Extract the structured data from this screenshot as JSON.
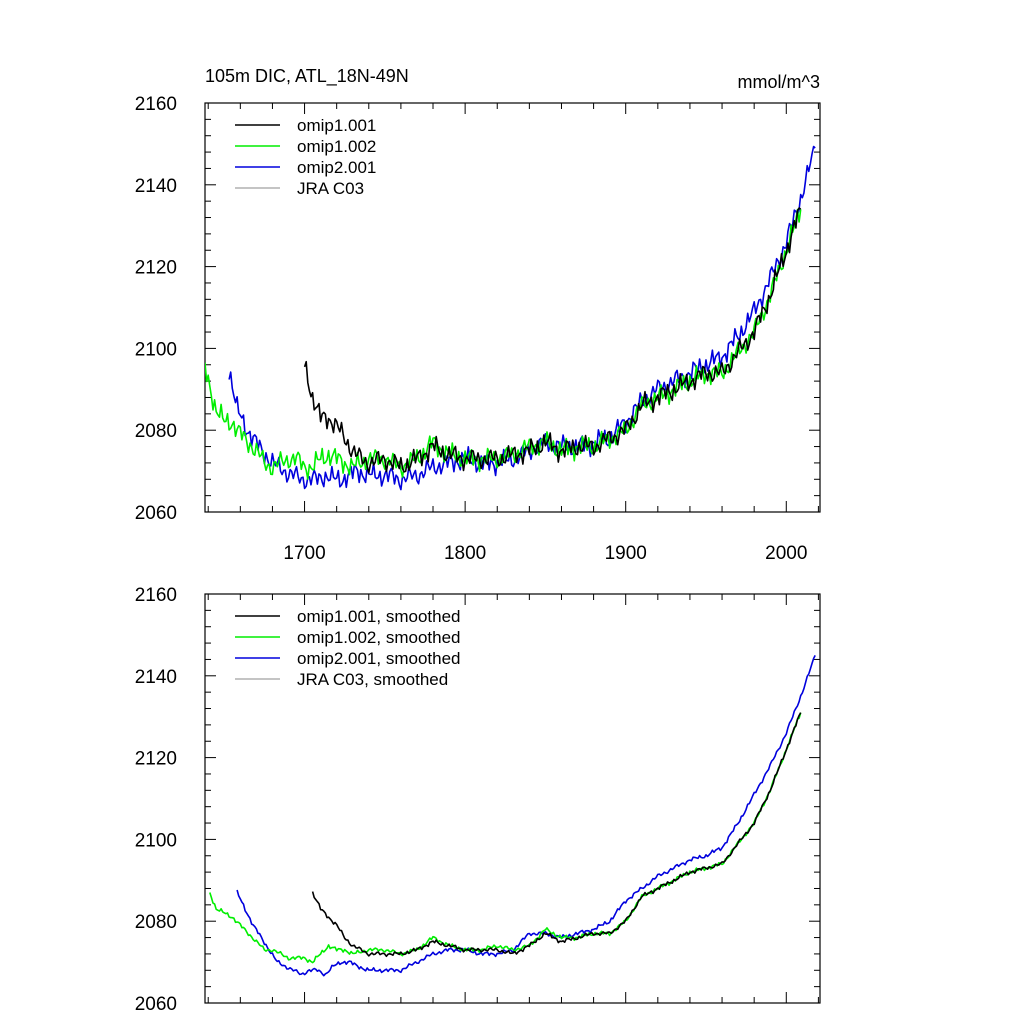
{
  "figure": {
    "title_left": "105m DIC, ATL_18N-49N",
    "title_right": "mmol/m^3"
  },
  "colors": {
    "omip1_001": "#000000",
    "omip1_002": "#00ee00",
    "omip2_001": "#0000dd",
    "jra_c03": "#b0b0b0"
  },
  "chart_data": [
    {
      "type": "line",
      "panel": "top",
      "title": "105m DIC, ATL_18N-49N",
      "units": "mmol/m^3",
      "xlim": [
        1638,
        2021
      ],
      "ylim": [
        2060,
        2160
      ],
      "xticks": [
        1700,
        1800,
        1900,
        2000
      ],
      "yticks": [
        2060,
        2080,
        2100,
        2120,
        2140,
        2160
      ],
      "xtick_labels": [
        "1700",
        "1800",
        "1900",
        "2000"
      ],
      "ytick_labels": [
        "2060",
        "2080",
        "2100",
        "2120",
        "2140",
        "2160"
      ],
      "legend_position": "top-left",
      "series": [
        {
          "name": "omip1.001",
          "color_key": "omip1_001",
          "x": [
            1700,
            1705,
            1710,
            1715,
            1720,
            1725,
            1730,
            1735,
            1740,
            1750,
            1760,
            1770,
            1780,
            1790,
            1800,
            1810,
            1820,
            1830,
            1840,
            1850,
            1860,
            1870,
            1880,
            1890,
            1900,
            1910,
            1920,
            1930,
            1940,
            1950,
            1960,
            1970,
            1980,
            1990,
            2000,
            2009
          ],
          "y": [
            2096,
            2088,
            2083,
            2083,
            2081,
            2078,
            2075,
            2073,
            2072,
            2073,
            2071,
            2073,
            2076,
            2074,
            2073,
            2073,
            2073,
            2074,
            2075,
            2077,
            2075,
            2076,
            2076,
            2078,
            2080,
            2086,
            2088,
            2090,
            2092,
            2094,
            2094,
            2099,
            2104,
            2113,
            2124,
            2134
          ]
        },
        {
          "name": "omip1.002",
          "color_key": "omip1_002",
          "x": [
            1638,
            1645,
            1650,
            1655,
            1660,
            1665,
            1670,
            1675,
            1680,
            1685,
            1690,
            1695,
            1700,
            1705,
            1710,
            1715,
            1720,
            1725,
            1730,
            1740,
            1750,
            1760,
            1770,
            1780,
            1790,
            1800,
            1810,
            1820,
            1830,
            1840,
            1850,
            1860,
            1870,
            1880,
            1890,
            1900,
            1910,
            1920,
            1930,
            1940,
            1950,
            1960,
            1970,
            1980,
            1990,
            2000,
            2009
          ],
          "y": [
            2095,
            2085,
            2082,
            2082,
            2079,
            2077,
            2075,
            2072,
            2071,
            2072,
            2073,
            2073,
            2071,
            2071,
            2073,
            2074,
            2073,
            2072,
            2071,
            2073,
            2073,
            2071,
            2073,
            2077,
            2074,
            2073,
            2073,
            2073,
            2074,
            2076,
            2077,
            2075,
            2076,
            2076,
            2078,
            2080,
            2086,
            2088,
            2090,
            2092,
            2094,
            2094,
            2099,
            2104,
            2113,
            2124,
            2134
          ]
        },
        {
          "name": "omip2.001",
          "color_key": "omip2_001",
          "x": [
            1653,
            1658,
            1663,
            1668,
            1673,
            1678,
            1683,
            1688,
            1693,
            1698,
            1703,
            1708,
            1713,
            1718,
            1723,
            1728,
            1733,
            1740,
            1750,
            1760,
            1770,
            1780,
            1790,
            1800,
            1810,
            1820,
            1830,
            1840,
            1850,
            1860,
            1870,
            1880,
            1890,
            1900,
            1910,
            1920,
            1930,
            1940,
            1950,
            1960,
            1970,
            1980,
            1990,
            2000,
            2010,
            2018
          ],
          "y": [
            2095,
            2085,
            2081,
            2078,
            2075,
            2073,
            2071,
            2070,
            2069,
            2068,
            2068,
            2068,
            2069,
            2068,
            2068,
            2069,
            2070,
            2069,
            2069,
            2068,
            2069,
            2071,
            2072,
            2073,
            2072,
            2072,
            2073,
            2075,
            2077,
            2076,
            2076,
            2077,
            2078,
            2082,
            2087,
            2090,
            2092,
            2094,
            2096,
            2098,
            2103,
            2109,
            2117,
            2126,
            2138,
            2149
          ]
        },
        {
          "name": "JRA C03",
          "color_key": "jra_c03",
          "x": [],
          "y": []
        }
      ]
    },
    {
      "type": "line",
      "panel": "bottom",
      "title": "",
      "xlim": [
        1638,
        2021
      ],
      "ylim": [
        2060,
        2160
      ],
      "xticks": [
        1700,
        1800,
        1900,
        2000
      ],
      "yticks": [
        2060,
        2080,
        2100,
        2120,
        2140,
        2160
      ],
      "ytick_labels": [
        "2060",
        "2080",
        "2100",
        "2120",
        "2140",
        "2160"
      ],
      "legend_position": "top-left",
      "series": [
        {
          "name": "omip1.001, smoothed",
          "color_key": "omip1_001",
          "x": [
            1705,
            1710,
            1715,
            1720,
            1725,
            1730,
            1735,
            1740,
            1750,
            1760,
            1770,
            1780,
            1790,
            1800,
            1810,
            1820,
            1830,
            1840,
            1850,
            1860,
            1870,
            1880,
            1890,
            1900,
            1905,
            1910,
            1920,
            1930,
            1940,
            1950,
            1960,
            1970,
            1980,
            1990,
            2000,
            2009
          ],
          "y": [
            2087,
            2083,
            2081,
            2079,
            2076,
            2074,
            2073,
            2072,
            2072,
            2072,
            2073,
            2075,
            2074,
            2073,
            2073,
            2073,
            2072,
            2074,
            2077,
            2075,
            2076,
            2077,
            2077,
            2080,
            2083,
            2086,
            2088,
            2090,
            2092,
            2093,
            2094,
            2099,
            2104,
            2112,
            2122,
            2131
          ]
        },
        {
          "name": "omip1.002, smoothed",
          "color_key": "omip1_002",
          "x": [
            1641,
            1645,
            1650,
            1655,
            1660,
            1665,
            1670,
            1675,
            1680,
            1685,
            1690,
            1695,
            1700,
            1705,
            1710,
            1715,
            1720,
            1725,
            1730,
            1740,
            1750,
            1760,
            1770,
            1780,
            1790,
            1800,
            1810,
            1820,
            1830,
            1840,
            1850,
            1860,
            1870,
            1880,
            1890,
            1900,
            1905,
            1910,
            1920,
            1930,
            1940,
            1950,
            1960,
            1970,
            1980,
            1990,
            2000,
            2009
          ],
          "y": [
            2087,
            2083,
            2082,
            2081,
            2079,
            2077,
            2075,
            2073,
            2073,
            2072,
            2071,
            2071,
            2071,
            2070,
            2072,
            2074,
            2073,
            2073,
            2072,
            2073,
            2073,
            2072,
            2073,
            2076,
            2074,
            2073,
            2073,
            2074,
            2073,
            2074,
            2078,
            2076,
            2076,
            2077,
            2077,
            2080,
            2083,
            2086,
            2088,
            2090,
            2092,
            2093,
            2094,
            2099,
            2104,
            2112,
            2122,
            2131
          ]
        },
        {
          "name": "omip2.001, smoothed",
          "color_key": "omip2_001",
          "x": [
            1658,
            1663,
            1668,
            1673,
            1678,
            1683,
            1688,
            1693,
            1698,
            1703,
            1708,
            1713,
            1718,
            1723,
            1728,
            1733,
            1740,
            1750,
            1760,
            1770,
            1780,
            1790,
            1800,
            1810,
            1820,
            1830,
            1840,
            1850,
            1860,
            1870,
            1880,
            1890,
            1900,
            1910,
            1920,
            1930,
            1940,
            1950,
            1960,
            1970,
            1980,
            1990,
            2000,
            2010,
            2018
          ],
          "y": [
            2087,
            2083,
            2079,
            2076,
            2073,
            2070,
            2069,
            2068,
            2067,
            2068,
            2068,
            2067,
            2069,
            2070,
            2070,
            2069,
            2068,
            2068,
            2068,
            2070,
            2072,
            2073,
            2073,
            2072,
            2072,
            2073,
            2077,
            2077,
            2076,
            2077,
            2078,
            2080,
            2085,
            2088,
            2091,
            2093,
            2095,
            2096,
            2098,
            2104,
            2111,
            2118,
            2126,
            2136,
            2145
          ]
        },
        {
          "name": "JRA C03, smoothed",
          "color_key": "jra_c03",
          "x": [],
          "y": []
        }
      ]
    }
  ]
}
